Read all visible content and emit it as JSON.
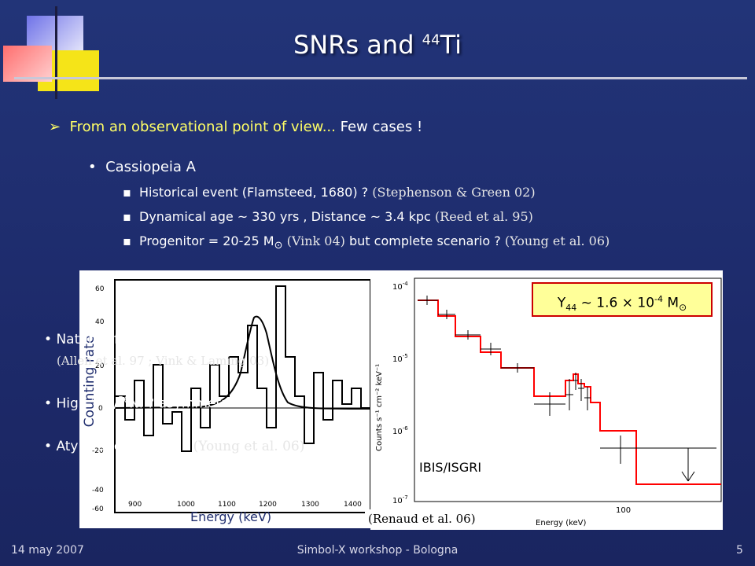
{
  "title": {
    "main": "SNRs and ",
    "superscript": "44",
    "element": "Ti"
  },
  "bullet1": {
    "text": "From an observational point of view... ",
    "highlight": "Few cases !"
  },
  "subhead": "Cassiopeia A",
  "items": [
    {
      "text": "Historical event (Flamsteed, 1680) ? ",
      "ref": "(Stephenson & Green 02)"
    },
    {
      "text": "Dynamical age ~ 330 yrs , Distance ~ 3.4 kpc ",
      "ref": "(Reed et al. 95)"
    },
    {
      "text_before": "Progenitor = 20-25 M",
      "sun_symbol": "⊙",
      "ref1": " (Vink 04)",
      "text_after": " but complete scenario ? ",
      "ref2": "(Young et al. 06)"
    }
  ],
  "left_plot": {
    "y_axis_label": "Counting rate",
    "x_axis_label": "Energy (keV)",
    "y_ticks": [
      "60",
      "40",
      "20",
      "0",
      "-20",
      "-40",
      "-60"
    ],
    "x_ticks": [
      "900",
      "1000",
      "1100",
      "1200",
      "1300",
      "1400"
    ]
  },
  "overlay_bullets": [
    {
      "text": "Nature of the continuum ?",
      "ref": "(Allen et al. 97 ; Vink & Laming 03)"
    },
    {
      "text": "High ",
      "sup": "44",
      "text2": "Ti/",
      "sup2": "56",
      "text3": "Ni ? asymmetries ?"
    },
    {
      "text": "Atypical explosion ? ",
      "ref": "(Young et al. 06)"
    }
  ],
  "right_plot": {
    "y_ticks": [
      "10",
      "10",
      "10",
      "10"
    ],
    "y_tick_exponents": [
      "-4",
      "-5",
      "-6",
      "-7"
    ],
    "y_axis_label": "Counts s⁻¹ cm⁻² keV⁻¹",
    "x_tick": "100",
    "x_axis_label": "Energy (keV)",
    "instrument": "IBIS/ISGRI",
    "citation": "(Renaud et al. 06)",
    "yield_box": {
      "prefix": "Y",
      "subscript": "44",
      "value": " ~ 1.6 × 10",
      "exp": "-4",
      "unit": " M",
      "sun": "⊙"
    }
  },
  "footer": {
    "date": "14 may 2007",
    "event": "Simbol-X workshop - Bologna",
    "page": "5"
  },
  "colors": {
    "highlight": "#ffff66",
    "accent_line": "#c8c8d8",
    "yield_border": "#cc0000",
    "yield_fill": "#ffff99",
    "model_red": "#ff0000"
  }
}
